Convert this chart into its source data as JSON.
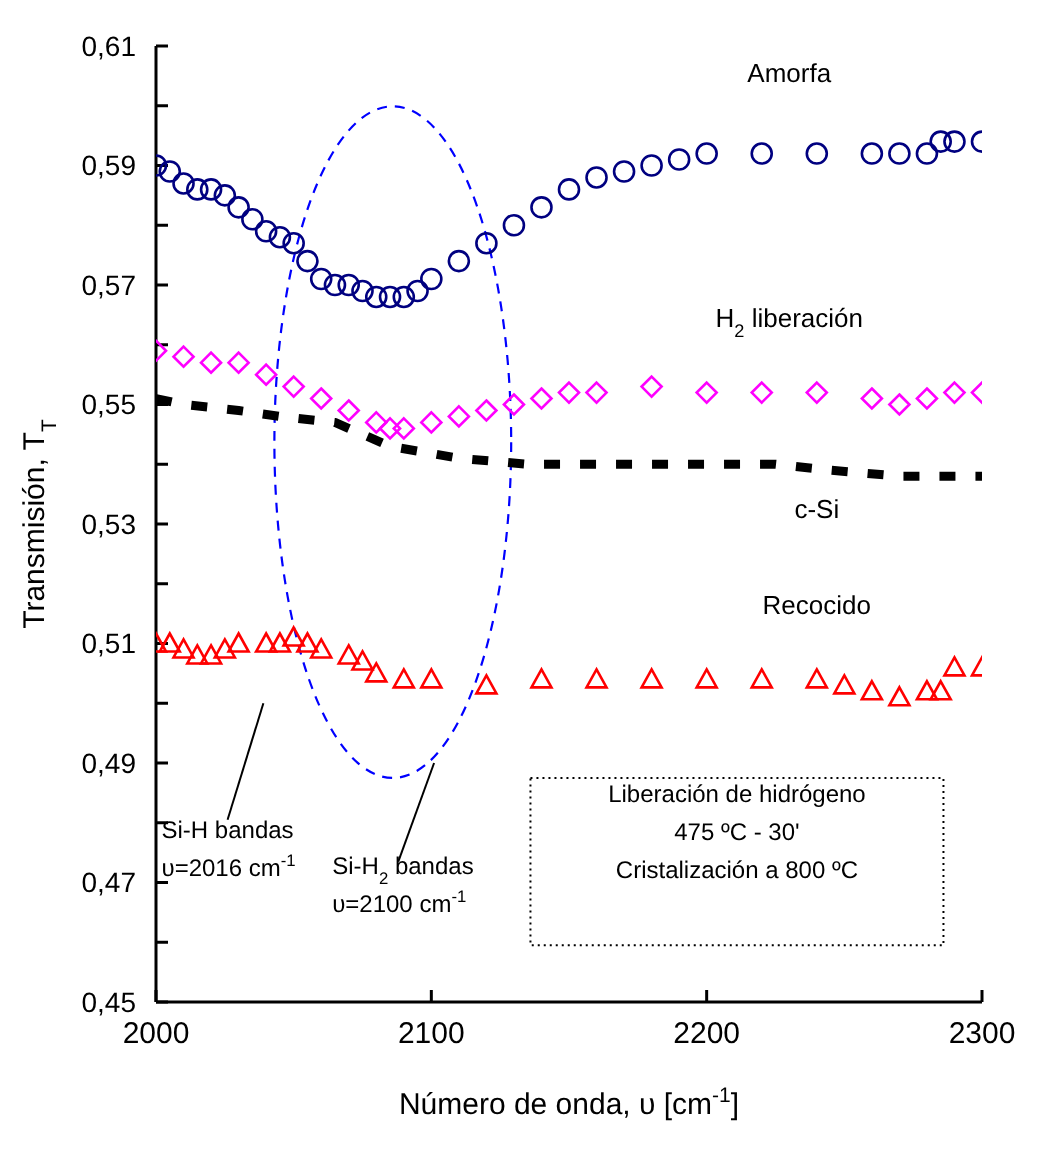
{
  "chart_data": {
    "type": "scatter",
    "xlabel": "Número de onda, υ [cm$^{-1}$]",
    "ylabel": "Transmisión, T$_{T}$",
    "xlim": [
      2000,
      2300
    ],
    "xticks": [
      2000,
      2100,
      2200,
      2300
    ],
    "ylim": [
      0.45,
      0.61
    ],
    "yticks": [
      {
        "value": 0.45,
        "label": "0,45"
      },
      {
        "value": 0.46,
        "label": null
      },
      {
        "value": 0.47,
        "label": "0,47"
      },
      {
        "value": 0.48,
        "label": null
      },
      {
        "value": 0.49,
        "label": "0,49"
      },
      {
        "value": 0.5,
        "label": null
      },
      {
        "value": 0.51,
        "label": "0,51"
      },
      {
        "value": 0.52,
        "label": null
      },
      {
        "value": 0.53,
        "label": "0,53"
      },
      {
        "value": 0.54,
        "label": null
      },
      {
        "value": 0.55,
        "label": "0,55"
      },
      {
        "value": 0.56,
        "label": null
      },
      {
        "value": 0.57,
        "label": "0,57"
      },
      {
        "value": 0.58,
        "label": null
      },
      {
        "value": 0.59,
        "label": "0,59"
      },
      {
        "value": 0.6,
        "label": null
      },
      {
        "value": 0.61,
        "label": "0,61"
      }
    ],
    "series": [
      {
        "name": "Amorfa",
        "color": "#000080",
        "marker": "circle",
        "x": [
          2000,
          2005,
          2010,
          2015,
          2020,
          2025,
          2030,
          2035,
          2040,
          2045,
          2050,
          2055,
          2060,
          2065,
          2070,
          2075,
          2080,
          2085,
          2090,
          2095,
          2100,
          2110,
          2120,
          2130,
          2140,
          2150,
          2160,
          2170,
          2180,
          2190,
          2200,
          2220,
          2240,
          2260,
          2270,
          2280,
          2285,
          2290,
          2300
        ],
        "values": [
          0.59,
          0.589,
          0.587,
          0.586,
          0.586,
          0.585,
          0.583,
          0.581,
          0.579,
          0.578,
          0.577,
          0.574,
          0.571,
          0.57,
          0.57,
          0.569,
          0.568,
          0.568,
          0.568,
          0.569,
          0.571,
          0.574,
          0.577,
          0.58,
          0.583,
          0.586,
          0.588,
          0.589,
          0.59,
          0.591,
          0.592,
          0.592,
          0.592,
          0.592,
          0.592,
          0.592,
          0.594,
          0.594,
          0.594
        ]
      },
      {
        "name": "H$_{2}$ liberación",
        "color": "#ff00ff",
        "marker": "diamond",
        "x": [
          2000,
          2010,
          2020,
          2030,
          2040,
          2050,
          2060,
          2070,
          2080,
          2085,
          2090,
          2100,
          2110,
          2120,
          2130,
          2140,
          2150,
          2160,
          2180,
          2200,
          2220,
          2240,
          2260,
          2270,
          2280,
          2290,
          2300
        ],
        "values": [
          0.559,
          0.558,
          0.557,
          0.557,
          0.555,
          0.553,
          0.551,
          0.549,
          0.547,
          0.546,
          0.546,
          0.547,
          0.548,
          0.549,
          0.55,
          0.551,
          0.552,
          0.552,
          0.553,
          0.552,
          0.552,
          0.552,
          0.551,
          0.55,
          0.551,
          0.552,
          0.552
        ]
      },
      {
        "name": "c-Si",
        "color": "#000000",
        "type": "line",
        "marker": "none",
        "line_style": "dashed",
        "x": [
          2000,
          2010,
          2030,
          2045,
          2065,
          2085,
          2110,
          2135,
          2160,
          2180,
          2205,
          2225,
          2245,
          2270,
          2300
        ],
        "values": [
          0.551,
          0.55,
          0.549,
          0.548,
          0.547,
          0.543,
          0.541,
          0.54,
          0.54,
          0.54,
          0.54,
          0.54,
          0.539,
          0.538,
          0.538
        ]
      },
      {
        "name": "Recocido",
        "color": "#ff0000",
        "marker": "triangle",
        "x": [
          2000,
          2005,
          2010,
          2015,
          2020,
          2025,
          2030,
          2040,
          2045,
          2050,
          2055,
          2060,
          2070,
          2075,
          2080,
          2090,
          2100,
          2120,
          2140,
          2160,
          2180,
          2200,
          2220,
          2240,
          2250,
          2260,
          2270,
          2280,
          2285,
          2290,
          2300
        ],
        "values": [
          0.51,
          0.51,
          0.509,
          0.508,
          0.508,
          0.509,
          0.51,
          0.51,
          0.51,
          0.511,
          0.51,
          0.509,
          0.508,
          0.507,
          0.505,
          0.504,
          0.504,
          0.503,
          0.504,
          0.504,
          0.504,
          0.504,
          0.504,
          0.504,
          0.503,
          0.502,
          0.501,
          0.502,
          0.502,
          0.506,
          0.506
        ]
      }
    ],
    "annotations": [
      "Si-H bandas\nυ=2016 cm$^{-1}$",
      "Si-H$_{2}$ bandas\nυ=2100 cm$^{-1}$",
      "Liberación de hidrógeno\n475 ºC  - 30'\nCristalización a 800 ºC"
    ]
  }
}
